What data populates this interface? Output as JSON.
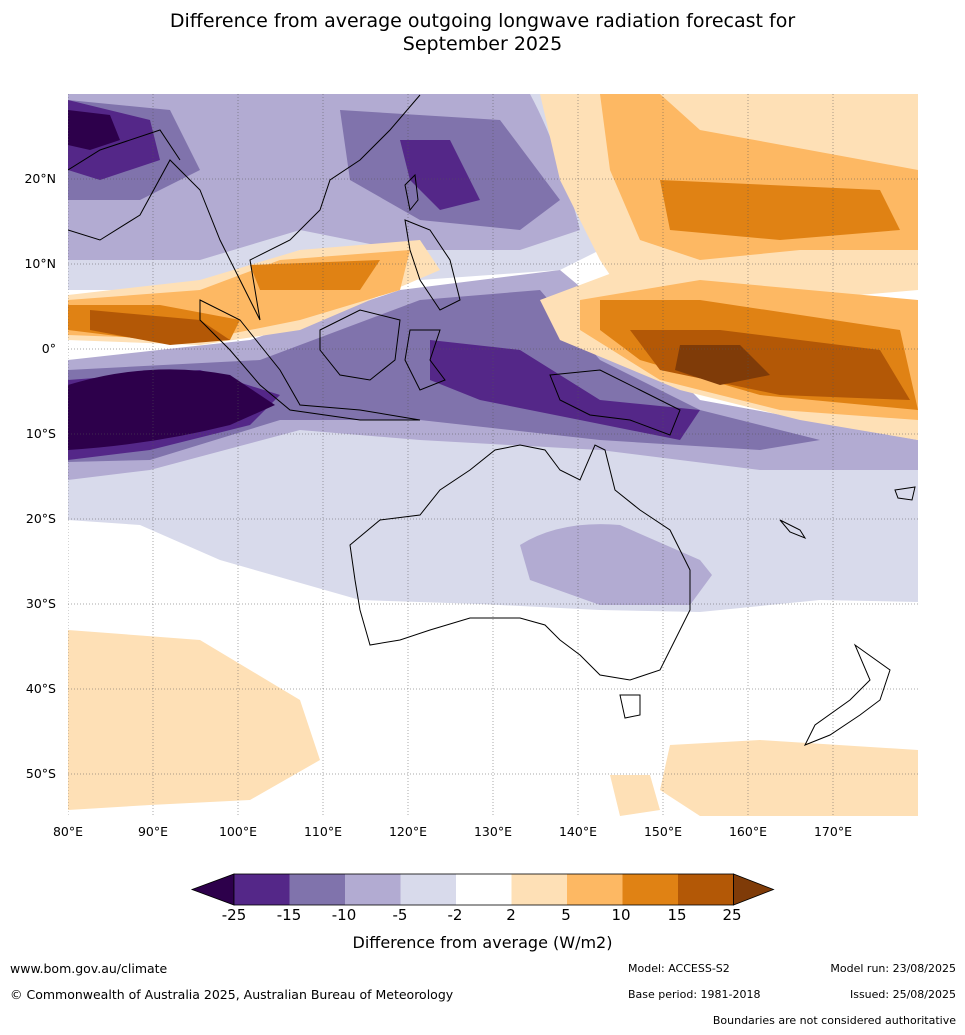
{
  "title_line1": "Difference from average outgoing longwave radiation forecast for",
  "title_line2": "September 2025",
  "lat_labels": [
    "20°N",
    "10°N",
    "0°",
    "10°S",
    "20°S",
    "30°S",
    "40°S",
    "50°S"
  ],
  "lon_labels": [
    "80°E",
    "90°E",
    "100°E",
    "110°E",
    "120°E",
    "130°E",
    "140°E",
    "150°E",
    "160°E",
    "170°E"
  ],
  "colorbar": {
    "ticks": [
      "-25",
      "-15",
      "-10",
      "-5",
      "-2",
      "2",
      "5",
      "10",
      "15",
      "25"
    ],
    "colors": [
      "#2d004b",
      "#542788",
      "#8073ac",
      "#b2abd2",
      "#d8daeb",
      "#ffffff",
      "#fee0b6",
      "#fdb863",
      "#e08214",
      "#b35806",
      "#7f3b08"
    ],
    "label": "Difference from average (W/m2)"
  },
  "footer": {
    "website": "www.bom.gov.au/climate",
    "copyright": "© Commonwealth of Australia 2025, Australian Bureau of Meteorology",
    "model": "Model: ACCESS-S2",
    "base_period": "Base period: 1981-2018",
    "model_run": "Model run: 23/08/2025",
    "issued": "Issued: 25/08/2025",
    "disclaimer": "Boundaries are not considered authoritative"
  }
}
